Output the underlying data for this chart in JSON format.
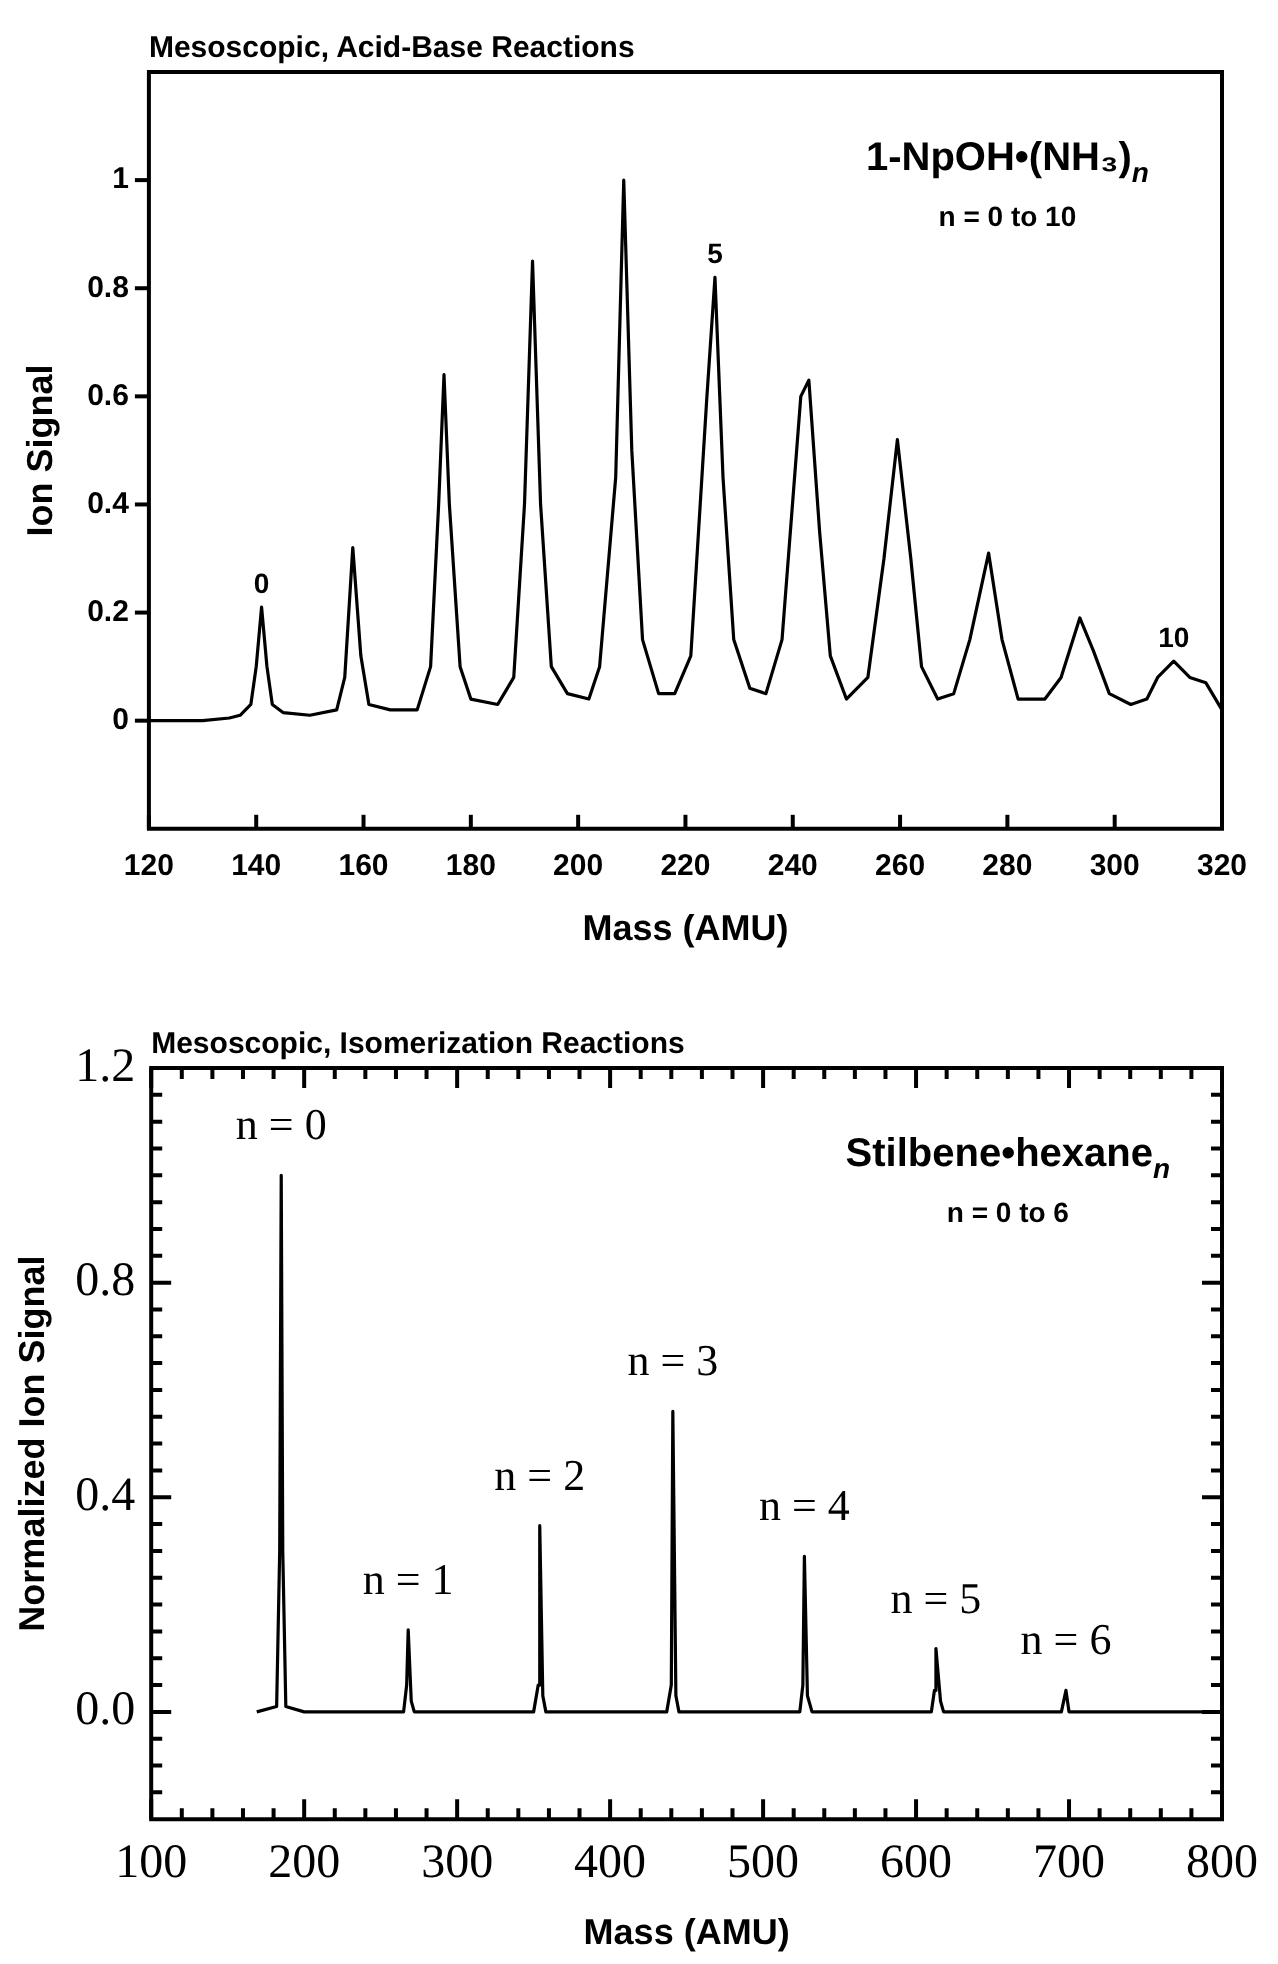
{
  "chart_data": [
    {
      "type": "line",
      "title": "Mesoscopic, Acid-Base Reactions",
      "xlabel": "Mass (AMU)",
      "ylabel": "Ion Signal",
      "x": [
        120,
        130,
        135,
        137,
        139,
        140,
        141,
        142,
        143,
        145,
        150,
        155,
        156.5,
        158,
        159.5,
        161,
        165,
        170,
        172.5,
        174,
        175,
        176,
        178,
        180,
        185,
        188,
        190,
        191.5,
        193,
        195,
        198,
        202,
        204,
        207,
        208.5,
        210,
        212,
        215,
        218,
        221,
        224,
        225.5,
        227,
        229,
        232,
        235,
        238,
        241.5,
        243,
        245,
        247,
        250,
        254,
        257,
        259.5,
        262,
        264,
        267,
        270,
        273,
        276.5,
        279,
        282,
        287,
        290,
        293.5,
        296,
        299,
        303,
        306,
        308,
        311,
        314,
        317,
        320
      ],
      "series": [
        {
          "color": "#000000",
          "values": [
            0,
            0,
            0.005,
            0.01,
            0.03,
            0.1,
            0.21,
            0.1,
            0.03,
            0.015,
            0.01,
            0.02,
            0.08,
            0.32,
            0.12,
            0.03,
            0.02,
            0.02,
            0.1,
            0.4,
            0.64,
            0.4,
            0.1,
            0.04,
            0.03,
            0.08,
            0.4,
            0.85,
            0.4,
            0.1,
            0.05,
            0.04,
            0.1,
            0.45,
            1.0,
            0.5,
            0.15,
            0.05,
            0.05,
            0.12,
            0.6,
            0.82,
            0.45,
            0.15,
            0.06,
            0.05,
            0.15,
            0.6,
            0.63,
            0.35,
            0.12,
            0.04,
            0.08,
            0.3,
            0.52,
            0.3,
            0.1,
            0.04,
            0.05,
            0.15,
            0.31,
            0.15,
            0.04,
            0.04,
            0.08,
            0.19,
            0.13,
            0.05,
            0.03,
            0.04,
            0.08,
            0.11,
            0.08,
            0.07,
            0.02
          ]
        }
      ],
      "xlim": [
        120,
        320
      ],
      "ylim": [
        -0.2,
        1.2
      ],
      "xticks": [
        120,
        140,
        160,
        180,
        200,
        220,
        240,
        260,
        280,
        300,
        320
      ],
      "yticks": [
        0,
        0.2,
        0.4,
        0.6,
        0.8,
        1
      ],
      "annotations": [
        "1-NpOH•(NH₃)$_{n}$",
        "n = 0 to 10",
        {
          "text": "0",
          "x": 141,
          "y": 0.21
        },
        {
          "text": "5",
          "x": 225.5,
          "y": 0.82
        },
        {
          "text": "10",
          "x": 311,
          "y": 0.11
        }
      ]
    },
    {
      "type": "line",
      "title": "Mesoscopic, Isomerization Reactions",
      "xlabel": "Mass (AMU)",
      "ylabel": "Normalized Ion Signal",
      "x": [
        169,
        182,
        184,
        185,
        186,
        188,
        200,
        265,
        267,
        268,
        270,
        272,
        350,
        353,
        354,
        356,
        358,
        437,
        440,
        441,
        443,
        445,
        524,
        526,
        527,
        529,
        532,
        610,
        612,
        613,
        616,
        618,
        695,
        698,
        700,
        800
      ],
      "series": [
        {
          "color": "#000000",
          "values": [
            0,
            0.01,
            0.3,
            1.0,
            0.3,
            0.01,
            0,
            0,
            0.05,
            0.153,
            0.02,
            0,
            0,
            0.05,
            0.347,
            0.03,
            0,
            0,
            0.05,
            0.56,
            0.03,
            0,
            0,
            0.05,
            0.29,
            0.03,
            0,
            0,
            0.04,
            0.118,
            0.02,
            0,
            0,
            0.04,
            0,
            0
          ]
        }
      ],
      "xlim": [
        100,
        800
      ],
      "ylim": [
        -0.2,
        1.2
      ],
      "xticks": [
        100,
        {
          "value": 120,
          "label": null
        },
        {
          "value": 140,
          "label": null
        },
        {
          "value": 160,
          "label": null
        },
        {
          "value": 180,
          "label": null
        },
        200,
        {
          "value": 220,
          "label": null
        },
        {
          "value": 240,
          "label": null
        },
        {
          "value": 260,
          "label": null
        },
        {
          "value": 280,
          "label": null
        },
        300,
        {
          "value": 320,
          "label": null
        },
        {
          "value": 340,
          "label": null
        },
        {
          "value": 360,
          "label": null
        },
        {
          "value": 380,
          "label": null
        },
        400,
        {
          "value": 420,
          "label": null
        },
        {
          "value": 440,
          "label": null
        },
        {
          "value": 460,
          "label": null
        },
        {
          "value": 480,
          "label": null
        },
        500,
        {
          "value": 520,
          "label": null
        },
        {
          "value": 540,
          "label": null
        },
        {
          "value": 560,
          "label": null
        },
        {
          "value": 580,
          "label": null
        },
        600,
        {
          "value": 620,
          "label": null
        },
        {
          "value": 640,
          "label": null
        },
        {
          "value": 660,
          "label": null
        },
        {
          "value": 680,
          "label": null
        },
        700,
        {
          "value": 720,
          "label": null
        },
        {
          "value": 740,
          "label": null
        },
        {
          "value": 760,
          "label": null
        },
        {
          "value": 780,
          "label": null
        },
        800
      ],
      "yticks": [
        {
          "value": -0.15,
          "label": null
        },
        {
          "value": -0.1,
          "label": null
        },
        {
          "value": -0.05,
          "label": null
        },
        {
          "value": 0,
          "label": "0.0"
        },
        {
          "value": 0.05,
          "label": null
        },
        {
          "value": 0.1,
          "label": null
        },
        {
          "value": 0.15,
          "label": null
        },
        {
          "value": 0.2,
          "label": null
        },
        {
          "value": 0.25,
          "label": null
        },
        {
          "value": 0.3,
          "label": null
        },
        {
          "value": 0.35,
          "label": null
        },
        {
          "value": 0.4,
          "label": "0.4"
        },
        {
          "value": 0.45,
          "label": null
        },
        {
          "value": 0.5,
          "label": null
        },
        {
          "value": 0.55,
          "label": null
        },
        {
          "value": 0.6,
          "label": null
        },
        {
          "value": 0.65,
          "label": null
        },
        {
          "value": 0.7,
          "label": null
        },
        {
          "value": 0.75,
          "label": null
        },
        {
          "value": 0.8,
          "label": "0.8"
        },
        {
          "value": 0.85,
          "label": null
        },
        {
          "value": 0.9,
          "label": null
        },
        {
          "value": 0.95,
          "label": null
        },
        {
          "value": 1.0,
          "label": null
        },
        {
          "value": 1.05,
          "label": null
        },
        {
          "value": 1.1,
          "label": null
        },
        {
          "value": 1.15,
          "label": null
        },
        {
          "value": 1.2,
          "label": "1.2"
        }
      ],
      "annotations": [
        "Stilbene•hexane$_{n}$",
        "n = 0 to 6",
        {
          "text": "n = 0",
          "x": 185,
          "y": 1.0
        },
        {
          "text": "n = 1",
          "x": 268,
          "y": 0.153
        },
        {
          "text": "n = 2",
          "x": 354,
          "y": 0.347
        },
        {
          "text": "n = 3",
          "x": 441,
          "y": 0.56
        },
        {
          "text": "n = 4",
          "x": 527,
          "y": 0.29
        },
        {
          "text": "n = 5",
          "x": 613,
          "y": 0.118
        },
        {
          "text": "n = 6",
          "x": 698,
          "y": 0.04
        }
      ]
    }
  ]
}
